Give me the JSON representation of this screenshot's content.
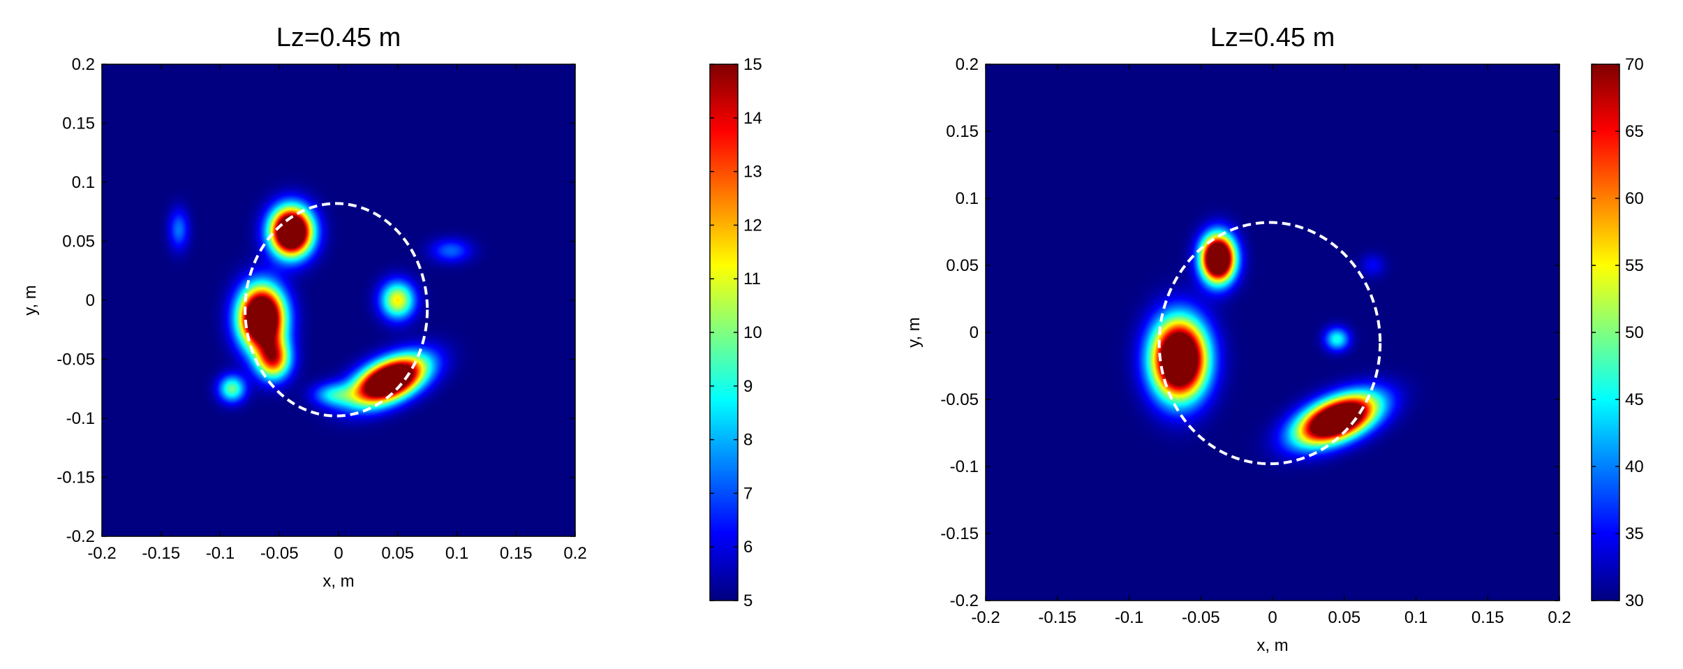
{
  "chart_data": [
    {
      "type": "heatmap",
      "title": "Lz=0.45 m",
      "xlabel": "x, m",
      "ylabel": "y, m",
      "xlim": [
        -0.2,
        0.2
      ],
      "ylim": [
        -0.2,
        0.2
      ],
      "xticks": [
        "-0.2",
        "-0.15",
        "-0.1",
        "-0.05",
        "0",
        "0.05",
        "0.1",
        "0.15",
        "0.2"
      ],
      "yticks": [
        "0.2",
        "0.15",
        "0.1",
        "0.05",
        "0",
        "-0.05",
        "-0.1",
        "-0.15",
        "-0.2"
      ],
      "colormap": "jet",
      "colorbar": {
        "min": 5,
        "max": 15,
        "ticks": [
          "15",
          "14",
          "13",
          "12",
          "11",
          "10",
          "9",
          "8",
          "7",
          "6",
          "5"
        ]
      },
      "background_value": 5,
      "hotspots": [
        {
          "x": -0.04,
          "y": 0.058,
          "peak": 15,
          "sx": 0.012,
          "sy": 0.014
        },
        {
          "x": -0.065,
          "y": -0.015,
          "peak": 15,
          "sx": 0.013,
          "sy": 0.018
        },
        {
          "x": -0.055,
          "y": -0.05,
          "peak": 10,
          "sx": 0.01,
          "sy": 0.012
        },
        {
          "x": -0.09,
          "y": -0.075,
          "peak": 8,
          "sx": 0.008,
          "sy": 0.008
        },
        {
          "x": 0.043,
          "y": -0.068,
          "peak": 15,
          "sx": 0.022,
          "sy": 0.011,
          "angle": 25
        },
        {
          "x": 0.05,
          "y": 0.0,
          "peak": 9,
          "sx": 0.01,
          "sy": 0.011
        },
        {
          "x": -0.135,
          "y": 0.06,
          "peak": 6.5,
          "sx": 0.006,
          "sy": 0.012
        },
        {
          "x": 0.095,
          "y": 0.042,
          "peak": 6.4,
          "sx": 0.012,
          "sy": 0.007
        },
        {
          "x": -0.005,
          "y": -0.08,
          "peak": 7,
          "sx": 0.012,
          "sy": 0.007
        }
      ],
      "circle": {
        "cx": -0.002,
        "cy": -0.008,
        "rx": 0.077,
        "ry": 0.09,
        "style": "dashed",
        "color": "#ffffff"
      }
    },
    {
      "type": "heatmap",
      "title": "Lz=0.45 m",
      "xlabel": "x, m",
      "ylabel": "y, m",
      "xlim": [
        -0.2,
        0.2
      ],
      "ylim": [
        -0.2,
        0.2
      ],
      "xticks": [
        "-0.2",
        "-0.15",
        "-0.1",
        "-0.05",
        "0",
        "0.05",
        "0.1",
        "0.15",
        "0.2"
      ],
      "yticks": [
        "0.2",
        "0.15",
        "0.1",
        "0.05",
        "0",
        "-0.05",
        "-0.1",
        "-0.15",
        "-0.2"
      ],
      "colormap": "jet",
      "colorbar": {
        "min": 30,
        "max": 70,
        "ticks": [
          "70",
          "65",
          "60",
          "55",
          "50",
          "45",
          "40",
          "35",
          "30"
        ]
      },
      "background_value": 30,
      "hotspots": [
        {
          "x": -0.038,
          "y": 0.055,
          "peak": 70,
          "sx": 0.008,
          "sy": 0.012
        },
        {
          "x": -0.065,
          "y": -0.02,
          "peak": 70,
          "sx": 0.013,
          "sy": 0.02
        },
        {
          "x": 0.045,
          "y": -0.065,
          "peak": 70,
          "sx": 0.02,
          "sy": 0.01,
          "angle": 25
        },
        {
          "x": 0.045,
          "y": -0.005,
          "peak": 40,
          "sx": 0.006,
          "sy": 0.006
        },
        {
          "x": 0.07,
          "y": 0.05,
          "peak": 33,
          "sx": 0.006,
          "sy": 0.006
        }
      ],
      "circle": {
        "cx": -0.002,
        "cy": -0.008,
        "rx": 0.077,
        "ry": 0.09,
        "style": "dashed",
        "color": "#ffffff"
      }
    }
  ]
}
